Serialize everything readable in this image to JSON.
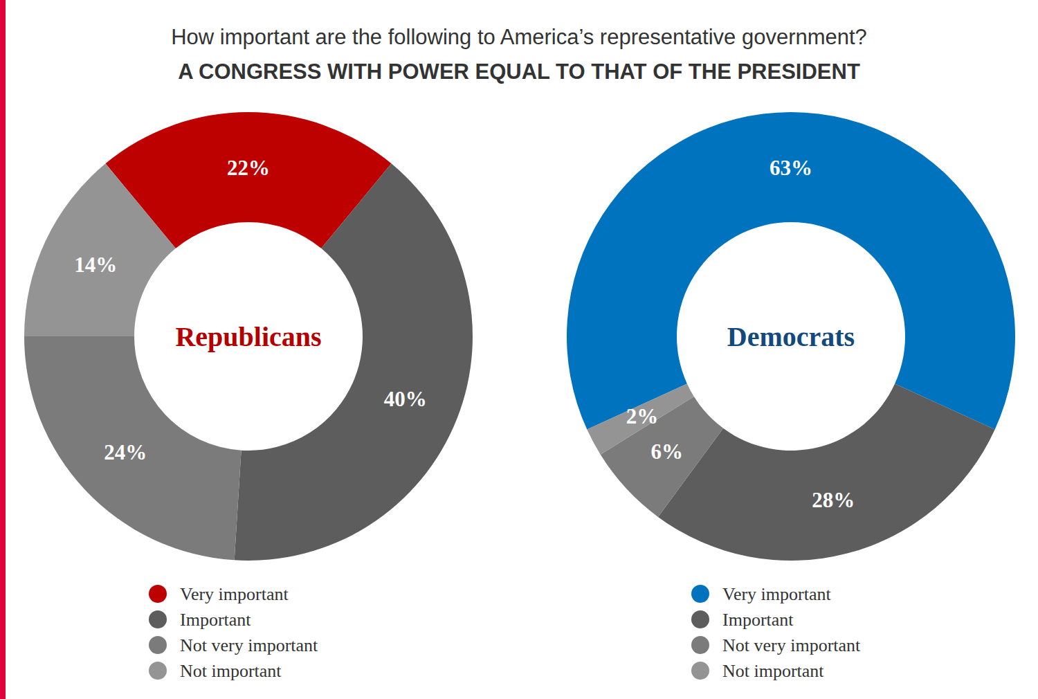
{
  "header": {
    "question": "How important are the following to America’s representative government?",
    "title": "A CONGRESS WITH POWER EQUAL TO THAT OF THE PRESIDENT"
  },
  "chart_data": [
    {
      "type": "donut",
      "title": "Republicans",
      "categories": [
        "Very important",
        "Important",
        "Not very important",
        "Not important"
      ],
      "values": [
        22,
        40,
        24,
        14
      ],
      "value_labels": [
        "22%",
        "40%",
        "24%",
        "14%"
      ],
      "colors": [
        "#bd0000",
        "#5d5d5d",
        "#7b7b7b",
        "#949494"
      ],
      "data_labels": true,
      "legend": "bottom"
    },
    {
      "type": "donut",
      "title": "Democrats",
      "categories": [
        "Very important",
        "Important",
        "Not very important",
        "Not important"
      ],
      "values": [
        63,
        28,
        6,
        2
      ],
      "value_labels": [
        "63%",
        "28%",
        "6%",
        "2%"
      ],
      "colors": [
        "#0073bf",
        "#5d5d5d",
        "#7b7b7b",
        "#949494"
      ],
      "data_labels": true,
      "legend": "bottom"
    }
  ]
}
